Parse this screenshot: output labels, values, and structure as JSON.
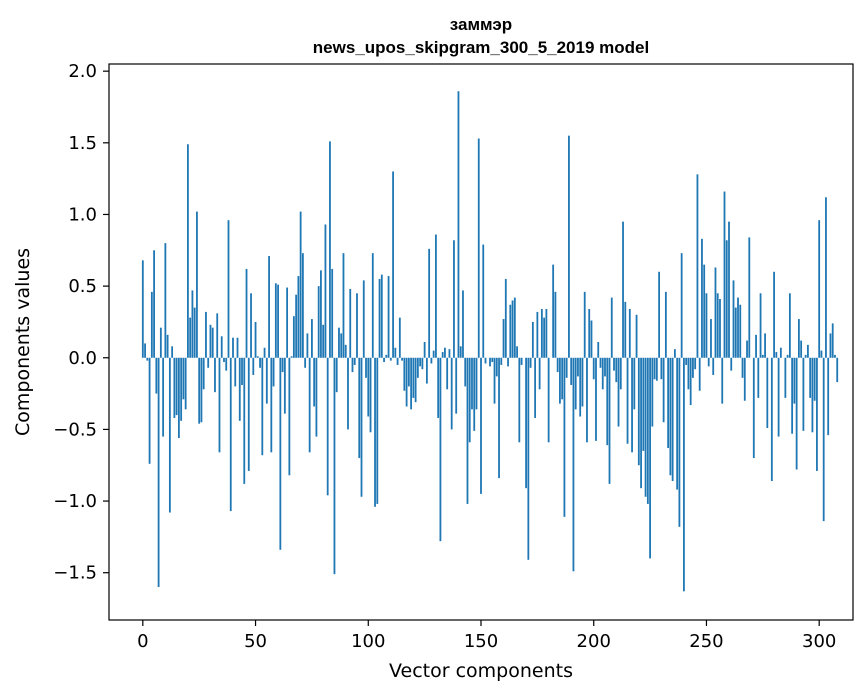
{
  "chart_data": {
    "type": "bar",
    "title_lines": [
      "заммэр",
      "news_upos_skipgram_300_5_2019 model"
    ],
    "xlabel": "Vector components",
    "ylabel": "Components values",
    "xlim": [
      -15,
      315
    ],
    "ylim": [
      -1.83,
      2.05
    ],
    "xticks": [
      0,
      50,
      100,
      150,
      200,
      250,
      300
    ],
    "xtick_labels": [
      "0",
      "50",
      "100",
      "150",
      "200",
      "250",
      "300"
    ],
    "yticks": [
      -1.5,
      -1.0,
      -0.5,
      0.0,
      0.5,
      1.0,
      1.5,
      2.0
    ],
    "ytick_labels": [
      "−1.5",
      "−1.0",
      "−0.5",
      "0.0",
      "0.5",
      "1.0",
      "1.5",
      "2.0"
    ],
    "bar_color": "#1f77b4",
    "grid": false,
    "values": [
      0.68,
      0.1,
      -0.02,
      -0.74,
      0.46,
      0.75,
      -0.25,
      -1.6,
      0.21,
      -0.55,
      0.8,
      0.16,
      -1.08,
      0.08,
      -0.42,
      -0.4,
      -0.56,
      -0.44,
      -0.29,
      -0.36,
      1.49,
      0.28,
      0.47,
      0.35,
      1.02,
      -0.46,
      -0.45,
      -0.22,
      0.32,
      -0.07,
      0.23,
      0.21,
      -0.24,
      0.31,
      -0.66,
      0.15,
      -0.03,
      -0.09,
      0.96,
      -1.07,
      0.14,
      -0.2,
      0.14,
      -0.44,
      -0.19,
      -0.88,
      0.62,
      -0.79,
      0.45,
      -0.12,
      0.25,
      0.01,
      -0.07,
      -0.68,
      0.07,
      -0.32,
      0.71,
      -0.66,
      -0.2,
      0.52,
      0.51,
      -1.34,
      -0.1,
      -0.39,
      0.49,
      -0.82,
      0.01,
      0.29,
      0.44,
      0.57,
      1.02,
      0.73,
      -0.07,
      0.17,
      -0.66,
      0.27,
      -0.34,
      -0.55,
      0.5,
      0.61,
      0.23,
      0.93,
      -0.96,
      1.51,
      0.62,
      -1.51,
      -0.24,
      0.21,
      0.17,
      0.73,
      0.09,
      -0.5,
      0.48,
      -0.1,
      -0.05,
      0.45,
      -0.7,
      -0.97,
      0.54,
      -0.14,
      -0.41,
      -0.52,
      0.73,
      -1.04,
      -1.02,
      0.55,
      0.58,
      -0.03,
      0.02,
      0.57,
      -0.02,
      1.3,
      0.07,
      -0.05,
      0.28,
      -0.02,
      -0.23,
      -0.34,
      -0.2,
      -0.36,
      -0.28,
      -0.31,
      -0.14,
      -0.06,
      -0.08,
      0.11,
      -0.18,
      0.76,
      -0.04,
      0.05,
      0.86,
      -0.42,
      -1.28,
      0.04,
      0.07,
      -0.22,
      0.06,
      -0.5,
      0.82,
      -0.39,
      1.86,
      0.08,
      0.47,
      -0.2,
      -1.02,
      -0.59,
      -0.36,
      -0.51,
      -0.36,
      1.53,
      -0.95,
      0.79,
      -0.04,
      0.0,
      -0.06,
      -0.03,
      -0.32,
      -0.13,
      -0.84,
      -0.05,
      0.27,
      0.55,
      -0.06,
      0.37,
      0.4,
      0.42,
      0.08,
      -0.59,
      -0.05,
      0.0,
      -0.91,
      -1.41,
      -0.07,
      0.25,
      -0.42,
      0.32,
      -0.22,
      0.34,
      0.28,
      0.34,
      -0.59,
      0.0,
      0.65,
      0.46,
      -0.1,
      -0.32,
      -0.29,
      -1.11,
      -0.14,
      1.55,
      -0.19,
      -1.49,
      -0.36,
      -0.13,
      -0.41,
      -0.34,
      0.46,
      -0.59,
      0.34,
      0.26,
      -0.15,
      -0.58,
      0.11,
      -0.07,
      -0.22,
      -0.13,
      -0.61,
      -0.88,
      0.42,
      -0.09,
      -0.17,
      -0.48,
      -0.22,
      0.95,
      0.39,
      -0.6,
      0.34,
      -0.66,
      -0.36,
      0.3,
      -0.75,
      -0.91,
      -0.65,
      -0.97,
      -1.02,
      -1.4,
      -0.48,
      -0.15,
      -0.16,
      0.6,
      -0.15,
      -0.45,
      0.46,
      -0.63,
      -0.82,
      -0.86,
      0.06,
      -0.92,
      -1.18,
      0.73,
      -1.63,
      -0.05,
      -0.22,
      -0.33,
      -0.14,
      -0.08,
      1.28,
      -0.23,
      0.83,
      0.65,
      0.45,
      -0.06,
      0.27,
      -0.12,
      0.63,
      0.45,
      0.41,
      -0.32,
      1.16,
      0.82,
      0.95,
      -0.09,
      0.54,
      0.35,
      0.42,
      0.37,
      -0.14,
      -0.3,
      0.12,
      0.84,
      0.0,
      -0.7,
      0.16,
      -0.28,
      0.45,
      0.02,
      0.17,
      -0.49,
      0.0,
      -0.86,
      0.6,
      0.04,
      -0.55,
      0.07,
      0.0,
      -0.28,
      0.02,
      0.45,
      -0.53,
      -0.32,
      -0.78,
      0.27,
      0.12,
      -0.51,
      0.02,
      0.09,
      -0.28,
      -0.52,
      -0.3,
      -0.79,
      0.96,
      0.05,
      -1.14,
      1.12,
      -0.54,
      0.17,
      0.24,
      0.02,
      -0.17
    ]
  }
}
